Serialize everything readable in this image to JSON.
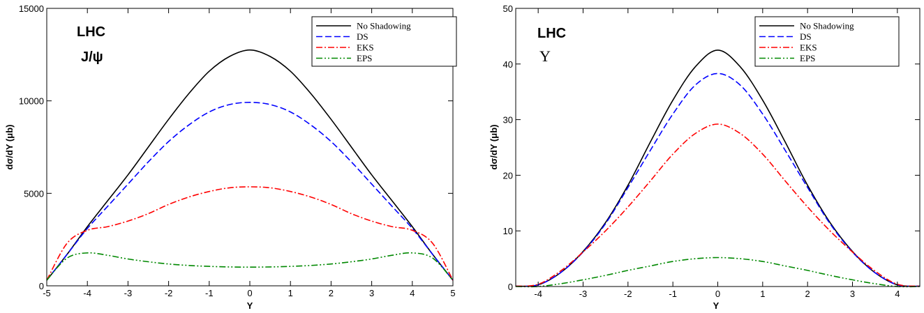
{
  "chart_data": [
    {
      "type": "line",
      "xlabel": "Y",
      "ylabel": "dσ/dY (μb)",
      "xlim": [
        -5,
        5
      ],
      "ylim": [
        0,
        15000
      ],
      "x_ticks": [
        "-5",
        "-4",
        "-3",
        "-2",
        "-1",
        "0",
        "1",
        "2",
        "3",
        "4",
        "5"
      ],
      "y_ticks": [
        "0",
        "5000",
        "10000",
        "15000"
      ],
      "annotations": [
        "LHC",
        "J/ψ"
      ],
      "legend_position": "top-right",
      "grid": false,
      "x": [
        -5,
        -4.5,
        -4,
        -3.5,
        -3,
        -2.5,
        -2,
        -1.5,
        -1,
        -0.5,
        0,
        0.5,
        1,
        1.5,
        2,
        2.5,
        3,
        3.5,
        4,
        4.5,
        5
      ],
      "series": [
        {
          "name": "No Shadowing",
          "color": "#000000",
          "dash": "solid",
          "values": [
            300,
            1700,
            3200,
            4600,
            6000,
            7500,
            9000,
            10400,
            11600,
            12400,
            12750,
            12400,
            11600,
            10400,
            9000,
            7500,
            6000,
            4600,
            3200,
            1700,
            300
          ]
        },
        {
          "name": "DS",
          "color": "#0000ff",
          "dash": "dashed",
          "values": [
            300,
            1700,
            3100,
            4300,
            5500,
            6700,
            7800,
            8700,
            9400,
            9800,
            9920,
            9800,
            9400,
            8700,
            7800,
            6700,
            5500,
            4300,
            3100,
            1700,
            300
          ]
        },
        {
          "name": "EKS",
          "color": "#ff0000",
          "dash": "dashdot",
          "values": [
            300,
            2300,
            3000,
            3200,
            3500,
            3900,
            4400,
            4800,
            5100,
            5300,
            5350,
            5300,
            5100,
            4800,
            4400,
            3900,
            3500,
            3200,
            3000,
            2300,
            300
          ]
        },
        {
          "name": "EPS",
          "color": "#008800",
          "dash": "dashdotdot",
          "values": [
            300,
            1500,
            1780,
            1650,
            1450,
            1300,
            1180,
            1100,
            1050,
            1020,
            1010,
            1020,
            1050,
            1100,
            1180,
            1300,
            1450,
            1650,
            1780,
            1500,
            300
          ]
        }
      ]
    },
    {
      "type": "line",
      "xlabel": "Y",
      "ylabel": "dσ/dY (μb)",
      "xlim": [
        -4.5,
        4.5
      ],
      "ylim": [
        0,
        50
      ],
      "x_ticks": [
        "-4",
        "-3",
        "-2",
        "-1",
        "0",
        "1",
        "2",
        "3",
        "4"
      ],
      "y_ticks": [
        "0",
        "10",
        "20",
        "30",
        "40",
        "50"
      ],
      "annotations": [
        "LHC",
        "Υ"
      ],
      "legend_position": "top-right",
      "grid": false,
      "x": [
        -4.5,
        -4,
        -3.5,
        -3,
        -2.5,
        -2,
        -1.5,
        -1,
        -0.5,
        0,
        0.5,
        1,
        1.5,
        2,
        2.5,
        3,
        3.5,
        4,
        4.5
      ],
      "series": [
        {
          "name": "No Shadowing",
          "color": "#000000",
          "dash": "solid",
          "values": [
            0.05,
            0.3,
            2.5,
            6.3,
            11.5,
            18.2,
            26,
            33.5,
            39.5,
            42.5,
            39.5,
            33.5,
            26,
            18.2,
            11.5,
            6.3,
            2.5,
            0.3,
            0.05
          ]
        },
        {
          "name": "DS",
          "color": "#0000ff",
          "dash": "dashed",
          "values": [
            0.05,
            0.3,
            2.5,
            6.2,
            11.3,
            17.8,
            24.5,
            31,
            36.2,
            38.3,
            36.2,
            31,
            24.5,
            17.8,
            11.3,
            6.2,
            2.5,
            0.3,
            0.05
          ]
        },
        {
          "name": "EKS",
          "color": "#ff0000",
          "dash": "dashdot",
          "values": [
            0.05,
            0.4,
            2.8,
            6.2,
            10,
            14.3,
            19,
            23.8,
            27.5,
            29.2,
            27.5,
            23.8,
            19,
            14.3,
            10,
            6.2,
            2.8,
            0.4,
            0.05
          ]
        },
        {
          "name": "EPS",
          "color": "#008800",
          "dash": "dashdotdot",
          "values": [
            0,
            0,
            0.5,
            1.2,
            2.0,
            2.9,
            3.7,
            4.5,
            5.0,
            5.2,
            5.0,
            4.5,
            3.7,
            2.9,
            2.0,
            1.2,
            0.5,
            0,
            0
          ]
        }
      ]
    }
  ]
}
